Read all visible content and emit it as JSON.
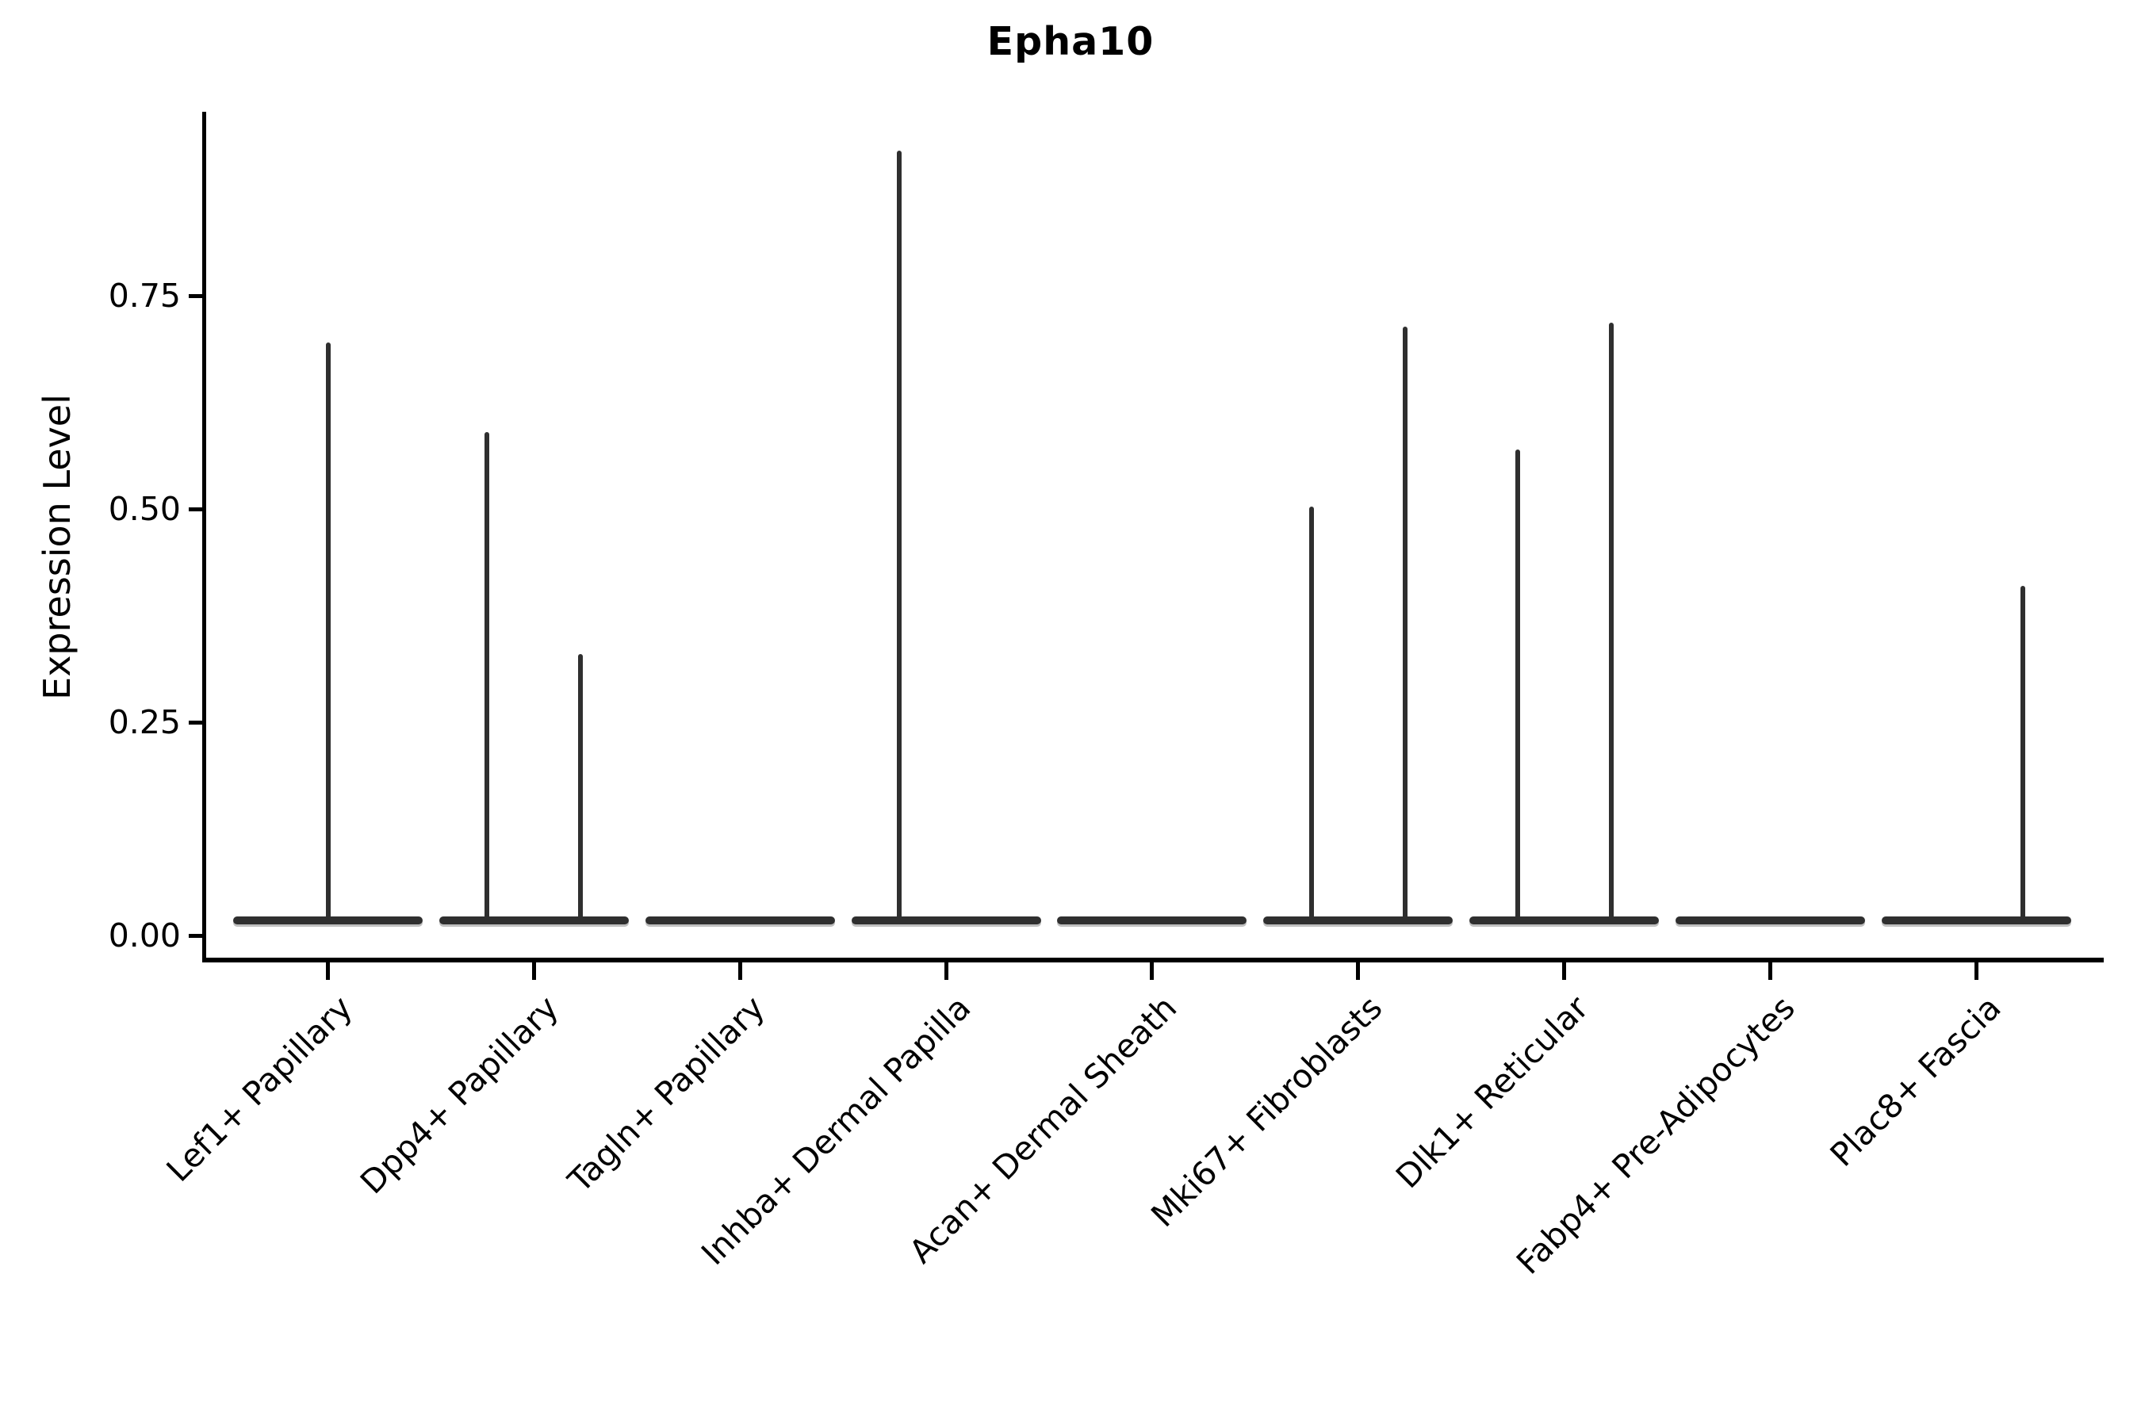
{
  "title": "Epha10",
  "axes": {
    "ylabel": "Expression Level",
    "ytick_labels": [
      "0.00",
      "0.25",
      "0.50",
      "0.75"
    ]
  },
  "colors": {
    "background": "#ffffff",
    "axis": "#000000",
    "violin": "#2f2f2f",
    "text": "#000000"
  },
  "chart_data": {
    "type": "violin",
    "title": "Epha10",
    "xlabel": "",
    "ylabel": "Expression Level",
    "ylim": [
      0,
      0.97
    ],
    "yticks": [
      0.0,
      0.25,
      0.5,
      0.75
    ],
    "grid": false,
    "legend_position": "none",
    "description": "Mostly-zero expression violins: each category shows a flat bulk at 0 with thin vertical density spikes reaching the maximum expression of the few positive cells. Spikes sit at the category center or dodged left/right sub-violin positions.",
    "categories": [
      "Lef1+ Papillary",
      "Dpp4+ Papillary",
      "Tagln+ Papillary",
      "Inhba+ Dermal Papilla",
      "Acan+ Dermal Sheath",
      "Mki67+ Fibroblasts",
      "Dlk1+ Reticular",
      "Fabp4+ Pre-Adipocytes",
      "Plac8+ Fascia"
    ],
    "violins": [
      {
        "category": "Lef1+ Papillary",
        "bulk_at": 0,
        "spikes": [
          {
            "side": "center",
            "max_expression": 0.695
          }
        ]
      },
      {
        "category": "Dpp4+ Papillary",
        "bulk_at": 0,
        "spikes": [
          {
            "side": "left",
            "max_expression": 0.59
          },
          {
            "side": "right",
            "max_expression": 0.33
          }
        ]
      },
      {
        "category": "Tagln+ Papillary",
        "bulk_at": 0,
        "spikes": []
      },
      {
        "category": "Inhba+ Dermal Papilla",
        "bulk_at": 0,
        "spikes": [
          {
            "side": "left",
            "max_expression": 0.92
          }
        ]
      },
      {
        "category": "Acan+ Dermal Sheath",
        "bulk_at": 0,
        "spikes": []
      },
      {
        "category": "Mki67+ Fibroblasts",
        "bulk_at": 0,
        "spikes": [
          {
            "side": "left",
            "max_expression": 0.503
          },
          {
            "side": "right",
            "max_expression": 0.714
          }
        ]
      },
      {
        "category": "Dlk1+ Reticular",
        "bulk_at": 0,
        "spikes": [
          {
            "side": "left",
            "max_expression": 0.57
          },
          {
            "side": "right",
            "max_expression": 0.718
          }
        ]
      },
      {
        "category": "Fabp4+ Pre-Adipocytes",
        "bulk_at": 0,
        "spikes": []
      },
      {
        "category": "Plac8+ Fascia",
        "bulk_at": 0,
        "spikes": [
          {
            "side": "right",
            "max_expression": 0.41
          }
        ]
      }
    ]
  }
}
